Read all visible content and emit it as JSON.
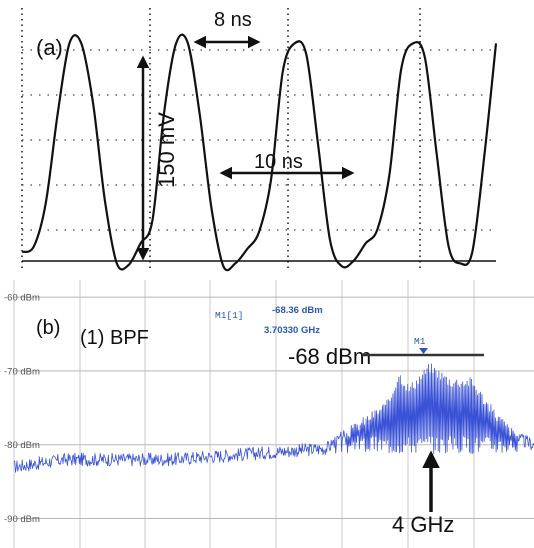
{
  "chart_data": [
    {
      "type": "line",
      "panel_label": "(a)",
      "x_unit": "ns",
      "y_unit": "mV",
      "xlim": [
        0,
        40
      ],
      "ylim": [
        -10,
        165
      ],
      "grid": "dotted",
      "series": [
        {
          "x": [
            0,
            1,
            2,
            3,
            4,
            5,
            6,
            7,
            8,
            9,
            10,
            11,
            12,
            13,
            14,
            15,
            16,
            17,
            18,
            19,
            20,
            21,
            22,
            23,
            24,
            25,
            26,
            27,
            28,
            29,
            30,
            31,
            32,
            33,
            34,
            35,
            36,
            37,
            38,
            39,
            40
          ],
          "values": [
            4,
            8,
            38,
            100,
            150,
            150,
            108,
            40,
            -4,
            -5,
            10,
            26,
            102,
            150,
            150,
            100,
            34,
            -6,
            -4,
            6,
            18,
            54,
            130,
            150,
            142,
            78,
            12,
            -6,
            -2,
            10,
            20,
            58,
            132,
            150,
            140,
            72,
            8,
            -4,
            4,
            70,
            150
          ]
        }
      ],
      "annotations": {
        "period": "8 ns",
        "pulse_width": "10 ns",
        "amplitude": "150 mV"
      }
    },
    {
      "type": "line",
      "panel_label": "(b)",
      "legend": "(1) BPF",
      "x_unit": "GHz",
      "y_unit": "dBm",
      "xlim": [
        0,
        5
      ],
      "ylim": [
        -94,
        -57
      ],
      "yticks": [
        -60,
        -70,
        -80,
        -90
      ],
      "ytick_labels": [
        "-60 dBm",
        "-70 dBm",
        "-80 dBm",
        "-90 dBm"
      ],
      "grid": "solid",
      "series": [
        {
          "x": [
            0,
            0.5,
            1,
            1.5,
            2,
            2.5,
            3,
            3.2,
            3.4,
            3.6,
            3.7,
            3.8,
            4,
            4.2,
            4.4,
            4.6,
            4.8,
            5
          ],
          "values": [
            -83,
            -82,
            -82,
            -82,
            -81.5,
            -81,
            -80.5,
            -79,
            -77,
            -75,
            -71,
            -73,
            -70,
            -72,
            -72,
            -76,
            -79,
            -80
          ]
        }
      ],
      "marker": {
        "label": "M1[1]",
        "name": "M1",
        "level": "-68.36 dBm",
        "frequency": "3.70330 GHz"
      },
      "annotations": {
        "peak_level": "-68 dBm",
        "frequency_arrow": "4 GHz"
      }
    }
  ]
}
